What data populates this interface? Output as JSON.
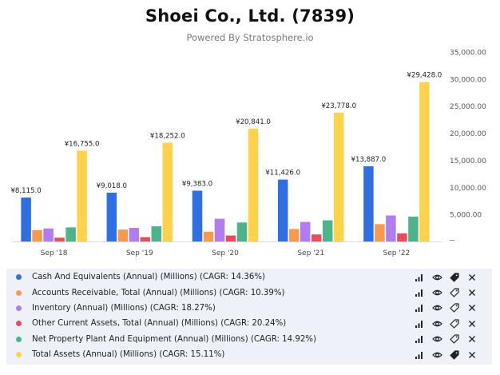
{
  "title": "Shoei Co., Ltd. (7839)",
  "subtitle": "Powered By Stratosphere.io",
  "chart_data": {
    "type": "bar",
    "categories": [
      "Sep '18",
      "Sep '19",
      "Sep '20",
      "Sep '21",
      "Sep '22"
    ],
    "ylim": [
      0,
      35000
    ],
    "yticks": [
      "",
      "5,000.00",
      "10,000.00",
      "15,000.00",
      "20,000.00",
      "25,000.00",
      "30,000.00",
      "35,000.00"
    ],
    "grid": false,
    "series": [
      {
        "name": "Cash And Equivalents (Annual) (Millions) (CAGR: 14.36%)",
        "color": "#2f6fe4",
        "values": [
          8115.0,
          9018.0,
          9383.0,
          11426.0,
          13887.0
        ],
        "labels": [
          "¥8,115.0",
          "¥9,018.0",
          "¥9,383.0",
          "¥11,426.0",
          "¥13,887.0"
        ]
      },
      {
        "name": "Accounts Receivable, Total (Annual) (Millions) (CAGR: 10.39%)",
        "color": "#f79a4c",
        "values": [
          2100,
          2200,
          1800,
          2300,
          3200
        ]
      },
      {
        "name": "Inventory (Annual) (Millions) (CAGR: 18.27%)",
        "color": "#b07cf0",
        "values": [
          2400,
          2500,
          4200,
          3600,
          4800
        ]
      },
      {
        "name": "Other Current Assets, Total (Annual) (Millions) (CAGR: 20.24%)",
        "color": "#ea4c5c",
        "values": [
          700,
          800,
          1100,
          1300,
          1500
        ]
      },
      {
        "name": "Net Property Plant And Equipment (Annual) (Millions) (CAGR: 14.92%)",
        "color": "#4db38a",
        "values": [
          2600,
          2800,
          3500,
          3900,
          4600
        ]
      },
      {
        "name": "Total Assets (Annual) (Millions) (CAGR: 15.11%)",
        "color": "#ffd24a",
        "values": [
          16755.0,
          18252.0,
          20841.0,
          23778.0,
          29428.0
        ],
        "labels": [
          "¥16,755.0",
          "¥18,252.0",
          "¥20,841.0",
          "¥23,778.0",
          "¥29,428.0"
        ]
      }
    ]
  },
  "legend": [
    {
      "label": "Cash And Equivalents (Annual) (Millions) (CAGR: 14.36%)",
      "color": "#2f6fe4",
      "tag_filled": true
    },
    {
      "label": "Accounts Receivable, Total (Annual) (Millions) (CAGR: 10.39%)",
      "color": "#f79a4c",
      "tag_filled": false
    },
    {
      "label": "Inventory (Annual) (Millions) (CAGR: 18.27%)",
      "color": "#b07cf0",
      "tag_filled": false
    },
    {
      "label": "Other Current Assets, Total (Annual) (Millions) (CAGR: 20.24%)",
      "color": "#ea4c5c",
      "tag_filled": false
    },
    {
      "label": "Net Property Plant And Equipment (Annual) (Millions) (CAGR: 14.92%)",
      "color": "#4db38a",
      "tag_filled": false
    },
    {
      "label": "Total Assets (Annual) (Millions) (CAGR: 15.11%)",
      "color": "#ffd24a",
      "tag_filled": true
    }
  ],
  "legend_actions": [
    "bar-chart-icon",
    "eye-icon",
    "tag-icon",
    "close-icon"
  ]
}
